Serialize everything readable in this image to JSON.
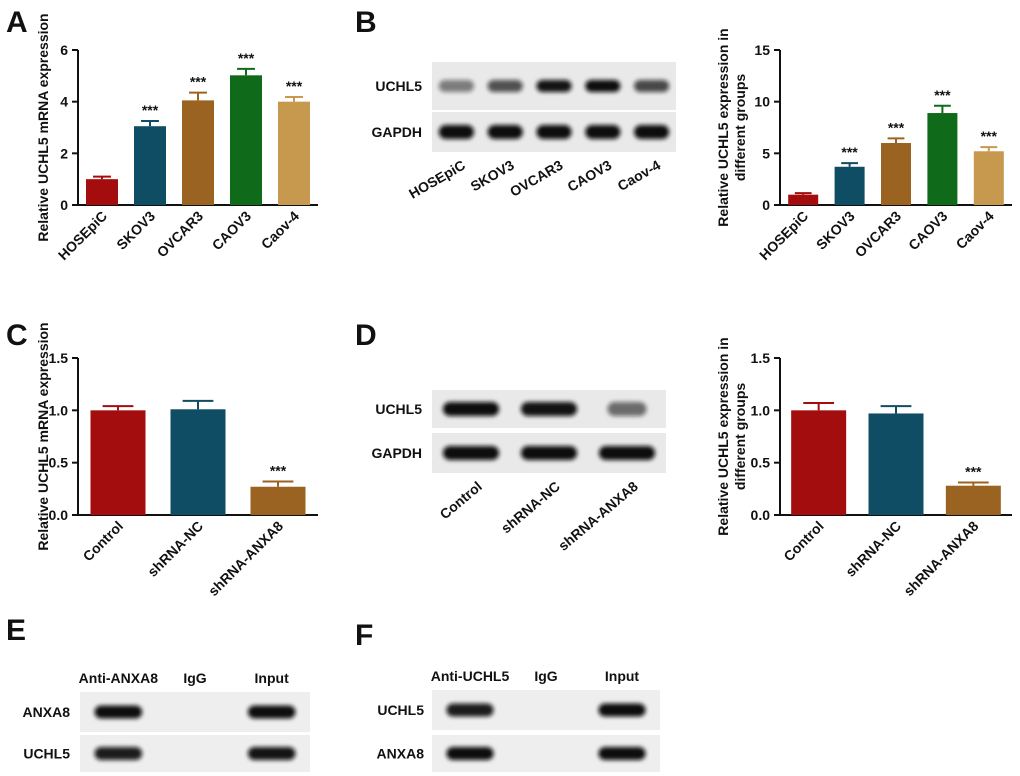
{
  "panels": {
    "A": "A",
    "B": "B",
    "C": "C",
    "D": "D",
    "E": "E",
    "F": "F"
  },
  "colors": {
    "HOSEpiC": "#a40d0d",
    "SKOV3": "#0e4d63",
    "OVCAR3": "#9a6321",
    "CAOV3": "#0f6b19",
    "Caov-4": "#c7994f",
    "Control": "#a40d0d",
    "shRNA-NC": "#0e4d63",
    "shRNA-ANXA8": "#9a6321"
  },
  "chart_data": [
    {
      "id": "A",
      "type": "bar",
      "ylabel": "Relative UCHL5 mRNA expression",
      "categories": [
        "HOSEpiC",
        "SKOV3",
        "OVCAR3",
        "CAOV3",
        "Caov-4"
      ],
      "values": [
        1.0,
        3.05,
        4.05,
        5.02,
        4.0
      ],
      "errors": [
        0.1,
        0.2,
        0.3,
        0.25,
        0.18
      ],
      "sig": [
        "",
        "***",
        "***",
        "***",
        "***"
      ],
      "ylim": [
        0,
        6
      ],
      "ticks": [
        0,
        2,
        4,
        6
      ],
      "tick_labels": [
        "0",
        "2",
        "4",
        "6"
      ]
    },
    {
      "id": "B",
      "type": "bar",
      "ylabel": "Relative UCHL5 expression in different groups",
      "categories": [
        "HOSEpiC",
        "SKOV3",
        "OVCAR3",
        "CAOV3",
        "Caov-4"
      ],
      "values": [
        1.0,
        3.7,
        6.0,
        8.9,
        5.2
      ],
      "errors": [
        0.15,
        0.35,
        0.45,
        0.7,
        0.4
      ],
      "sig": [
        "",
        "***",
        "***",
        "***",
        "***"
      ],
      "ylim": [
        0,
        15
      ],
      "ticks": [
        0,
        5,
        10,
        15
      ],
      "tick_labels": [
        "0",
        "5",
        "10",
        "15"
      ]
    },
    {
      "id": "C",
      "type": "bar",
      "ylabel": "Relative UCHL5 mRNA expression",
      "categories": [
        "Control",
        "shRNA-NC",
        "shRNA-ANXA8"
      ],
      "values": [
        1.0,
        1.01,
        0.27
      ],
      "errors": [
        0.04,
        0.08,
        0.05
      ],
      "sig": [
        "",
        "",
        "***"
      ],
      "ylim": [
        0,
        1.5
      ],
      "ticks": [
        0,
        0.5,
        1.0,
        1.5
      ],
      "tick_labels": [
        "0.0",
        "0.5",
        "1.0",
        "1.5"
      ]
    },
    {
      "id": "D",
      "type": "bar",
      "ylabel": "Relative UCHL5 expression in different groups",
      "categories": [
        "Control",
        "shRNA-NC",
        "shRNA-ANXA8"
      ],
      "values": [
        1.0,
        0.97,
        0.28
      ],
      "errors": [
        0.07,
        0.07,
        0.03
      ],
      "sig": [
        "",
        "",
        "***"
      ],
      "ylim": [
        0,
        1.5
      ],
      "ticks": [
        0,
        0.5,
        1.0,
        1.5
      ],
      "tick_labels": [
        "0.0",
        "0.5",
        "1.0",
        "1.5"
      ]
    }
  ],
  "blots": {
    "B": {
      "rows": [
        "UCHL5",
        "GAPDH"
      ],
      "lanes": [
        "HOSEpiC",
        "SKOV3",
        "OVCAR3",
        "CAOV3",
        "Caov-4"
      ],
      "intensity": [
        [
          0.3,
          0.55,
          0.9,
          0.95,
          0.6
        ],
        [
          0.95,
          0.95,
          0.95,
          0.95,
          0.95
        ]
      ]
    },
    "D": {
      "rows": [
        "UCHL5",
        "GAPDH"
      ],
      "lanes": [
        "Control",
        "shRNA-NC",
        "shRNA-ANXA8"
      ],
      "intensity": [
        [
          1.0,
          0.9,
          0.4
        ],
        [
          0.95,
          0.95,
          0.95
        ]
      ]
    },
    "E": {
      "columns": [
        "Anti-ANXA8",
        "IgG",
        "Input"
      ],
      "rows": [
        "ANXA8",
        "UCHL5"
      ],
      "intensity": [
        [
          0.95,
          0.0,
          0.95
        ],
        [
          0.85,
          0.0,
          0.9
        ]
      ]
    },
    "F": {
      "columns": [
        "Anti-UCHL5",
        "IgG",
        "Input"
      ],
      "rows": [
        "UCHL5",
        "ANXA8"
      ],
      "intensity": [
        [
          0.85,
          0.0,
          0.95
        ],
        [
          0.95,
          0.0,
          0.95
        ]
      ]
    }
  }
}
